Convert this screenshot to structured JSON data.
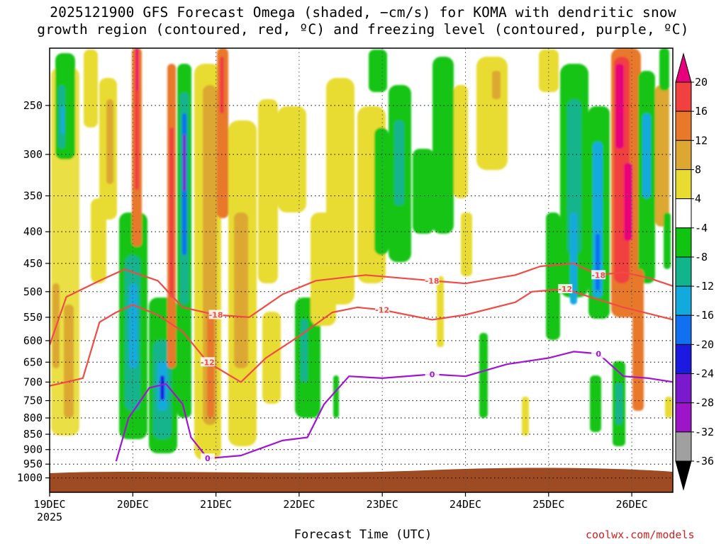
{
  "chart_data": {
    "type": "heatmap",
    "title_line1": "2025121900 GFS Forecast Omega (shaded, −cm/s) for KOMA with dendritic snow",
    "title_line2": "growth region (contoured, red, ºC) and freezing level (contoured, purple, ºC)",
    "xlabel": "Forecast Time (UTC)",
    "credit": "coolwx.com/models",
    "x_ticks": [
      "19DEC",
      "20DEC",
      "21DEC",
      "22DEC",
      "23DEC",
      "24DEC",
      "25DEC",
      "26DEC"
    ],
    "x_year": "2025",
    "x_range_days": [
      0,
      7.5
    ],
    "y_ticks": [
      "250",
      "300",
      "350",
      "400",
      "450",
      "500",
      "550",
      "600",
      "650",
      "700",
      "750",
      "800",
      "850",
      "900",
      "950",
      "1000"
    ],
    "y_range_hpa": [
      200,
      1020
    ],
    "colorbar": {
      "labels": [
        "20",
        "16",
        "12",
        "8",
        "4",
        "-4",
        "-8",
        "-12",
        "-16",
        "-20",
        "-24",
        "-28",
        "-32",
        "-36"
      ],
      "colors": [
        "#e8007a",
        "#f04040",
        "#e8782a",
        "#dca832",
        "#e8dc32",
        "#ffffff",
        "#12c412",
        "#12b48c",
        "#12aadc",
        "#1070f0",
        "#1a1ae0",
        "#7a1acc",
        "#9e14c8",
        "#a0a0a0",
        "#000000"
      ]
    },
    "contours": [
      {
        "name": "-18",
        "color": "#f04b46",
        "label": "-18",
        "points": [
          [
            0.0,
            610
          ],
          [
            0.2,
            510
          ],
          [
            0.6,
            480
          ],
          [
            0.9,
            460
          ],
          [
            1.3,
            480
          ],
          [
            1.6,
            530
          ],
          [
            2.0,
            545
          ],
          [
            2.4,
            550
          ],
          [
            2.8,
            505
          ],
          [
            3.2,
            480
          ],
          [
            3.8,
            470
          ],
          [
            4.2,
            475
          ],
          [
            4.6,
            480
          ],
          [
            5.0,
            485
          ],
          [
            5.6,
            470
          ],
          [
            5.9,
            455
          ],
          [
            6.3,
            450
          ],
          [
            6.6,
            470
          ],
          [
            6.9,
            465
          ],
          [
            7.2,
            475
          ],
          [
            7.5,
            490
          ]
        ]
      },
      {
        "name": "-12",
        "color": "#f04b46",
        "label": "-12",
        "points": [
          [
            0.0,
            710
          ],
          [
            0.4,
            690
          ],
          [
            0.6,
            560
          ],
          [
            0.8,
            540
          ],
          [
            1.0,
            525
          ],
          [
            1.3,
            545
          ],
          [
            1.6,
            580
          ],
          [
            1.9,
            650
          ],
          [
            2.3,
            700
          ],
          [
            2.6,
            640
          ],
          [
            3.0,
            590
          ],
          [
            3.4,
            540
          ],
          [
            3.7,
            530
          ],
          [
            4.0,
            535
          ],
          [
            4.3,
            545
          ],
          [
            4.6,
            555
          ],
          [
            5.0,
            545
          ],
          [
            5.6,
            520
          ],
          [
            5.8,
            500
          ],
          [
            6.2,
            495
          ],
          [
            6.5,
            510
          ],
          [
            6.9,
            530
          ],
          [
            7.5,
            555
          ]
        ]
      },
      {
        "name": "0",
        "color": "#a014d2",
        "label": "0",
        "points": [
          [
            0.8,
            940
          ],
          [
            0.95,
            800
          ],
          [
            1.2,
            715
          ],
          [
            1.4,
            705
          ],
          [
            1.6,
            760
          ],
          [
            1.7,
            860
          ],
          [
            1.9,
            930
          ],
          [
            2.3,
            920
          ],
          [
            2.8,
            870
          ],
          [
            3.1,
            860
          ],
          [
            3.3,
            760
          ],
          [
            3.6,
            685
          ],
          [
            4.0,
            690
          ],
          [
            4.6,
            680
          ],
          [
            5.0,
            685
          ],
          [
            5.5,
            655
          ],
          [
            6.0,
            640
          ],
          [
            6.3,
            625
          ],
          [
            6.6,
            630
          ],
          [
            6.9,
            685
          ],
          [
            7.2,
            690
          ],
          [
            7.5,
            700
          ]
        ]
      }
    ]
  }
}
